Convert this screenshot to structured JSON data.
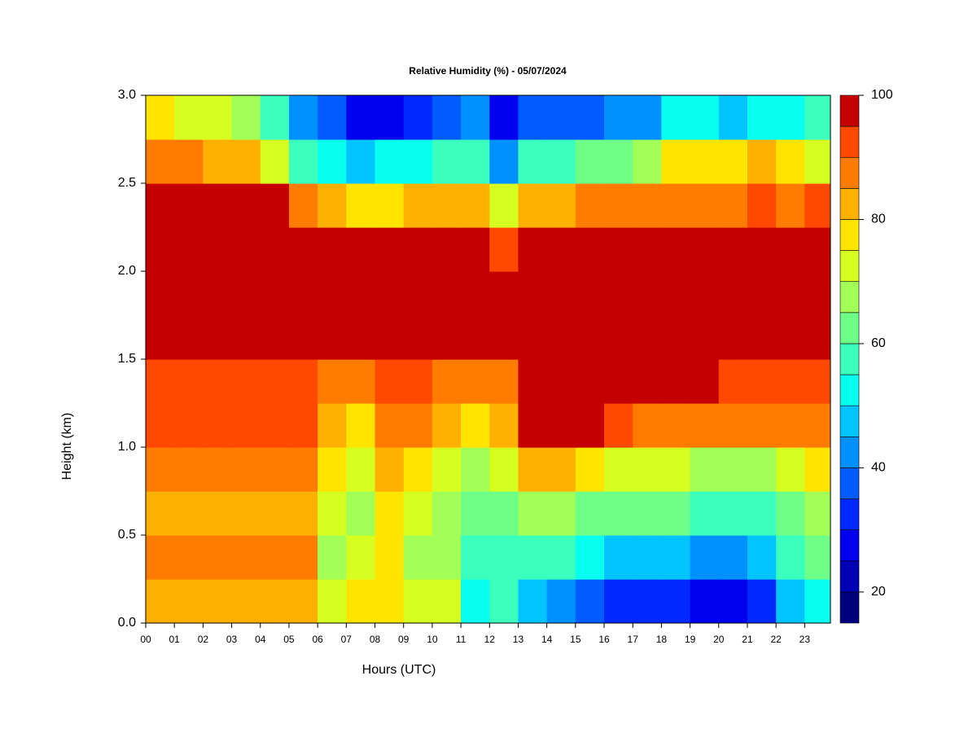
{
  "chart_data": {
    "type": "contour",
    "title": "Relative Humidity (%) - 05/07/2024",
    "x_label": "Hours (UTC)",
    "y_label": "Height (km)",
    "x": [
      0.5,
      1.5,
      2.5,
      3.5,
      4.5,
      5.5,
      6.5,
      7.5,
      8.5,
      9.5,
      10.5,
      11.5,
      12.5,
      13.5,
      14.5,
      15.5,
      16.5,
      17.5,
      18.5,
      19.5,
      20.5,
      21.5,
      22.5,
      23.5
    ],
    "y": [
      0.125,
      0.375,
      0.625,
      0.875,
      1.125,
      1.375,
      1.625,
      1.875,
      2.125,
      2.375,
      2.625,
      2.875
    ],
    "z": [
      [
        82,
        82,
        82,
        82,
        82,
        82,
        72,
        75,
        78,
        70,
        72,
        50,
        55,
        45,
        40,
        38,
        32,
        33,
        30,
        25,
        25,
        30,
        48,
        50
      ],
      [
        85,
        85,
        85,
        85,
        85,
        85,
        68,
        72,
        75,
        68,
        65,
        55,
        58,
        55,
        55,
        52,
        48,
        48,
        45,
        42,
        42,
        45,
        58,
        60
      ],
      [
        82,
        82,
        82,
        82,
        82,
        82,
        70,
        68,
        75,
        70,
        65,
        60,
        62,
        65,
        65,
        62,
        60,
        60,
        60,
        58,
        58,
        58,
        62,
        65
      ],
      [
        86,
        86,
        86,
        86,
        86,
        86,
        75,
        72,
        80,
        78,
        72,
        65,
        70,
        80,
        80,
        75,
        72,
        70,
        70,
        68,
        68,
        68,
        72,
        75
      ],
      [
        90,
        90,
        90,
        90,
        90,
        90,
        82,
        78,
        85,
        85,
        82,
        78,
        80,
        96,
        96,
        95,
        90,
        88,
        86,
        85,
        85,
        86,
        86,
        86
      ],
      [
        94,
        94,
        94,
        94,
        92,
        90,
        88,
        85,
        90,
        90,
        88,
        88,
        88,
        98,
        98,
        98,
        98,
        98,
        95,
        95,
        94,
        94,
        94,
        92
      ],
      [
        98,
        98,
        98,
        98,
        98,
        98,
        97,
        95,
        97,
        97,
        97,
        97,
        96,
        98,
        98,
        98,
        98,
        98,
        98,
        98,
        98,
        98,
        98,
        98
      ],
      [
        99,
        99,
        99,
        99,
        99,
        99,
        99,
        99,
        99,
        99,
        99,
        98,
        97,
        99,
        99,
        99,
        99,
        99,
        99,
        99,
        99,
        99,
        99,
        99
      ],
      [
        98,
        98,
        98,
        98,
        98,
        98,
        97,
        97,
        97,
        97,
        96,
        95,
        92,
        98,
        98,
        98,
        98,
        98,
        98,
        98,
        98,
        98,
        98,
        98
      ],
      [
        97,
        97,
        97,
        97,
        97,
        85,
        80,
        78,
        78,
        80,
        80,
        82,
        70,
        82,
        82,
        85,
        85,
        85,
        86,
        88,
        88,
        90,
        88,
        90
      ],
      [
        88,
        85,
        80,
        80,
        70,
        55,
        50,
        48,
        50,
        50,
        55,
        55,
        42,
        55,
        58,
        60,
        62,
        65,
        75,
        78,
        78,
        80,
        75,
        72
      ],
      [
        75,
        70,
        72,
        68,
        55,
        42,
        35,
        28,
        28,
        32,
        35,
        40,
        28,
        35,
        35,
        38,
        40,
        42,
        50,
        50,
        48,
        50,
        52,
        58
      ]
    ],
    "xlim": [
      0,
      23.9
    ],
    "ylim": [
      0,
      3.0
    ],
    "xticks": [
      {
        "value": 0,
        "label": "00"
      },
      {
        "value": 1,
        "label": "01"
      },
      {
        "value": 2,
        "label": "02"
      },
      {
        "value": 3,
        "label": "03"
      },
      {
        "value": 4,
        "label": "04"
      },
      {
        "value": 5,
        "label": "05"
      },
      {
        "value": 6,
        "label": "06"
      },
      {
        "value": 7,
        "label": "07"
      },
      {
        "value": 8,
        "label": "08"
      },
      {
        "value": 9,
        "label": "09"
      },
      {
        "value": 10,
        "label": "10"
      },
      {
        "value": 11,
        "label": "11"
      },
      {
        "value": 12,
        "label": "12"
      },
      {
        "value": 13,
        "label": "13"
      },
      {
        "value": 14,
        "label": "14"
      },
      {
        "value": 15,
        "label": "15"
      },
      {
        "value": 16,
        "label": "16"
      },
      {
        "value": 17,
        "label": "17"
      },
      {
        "value": 18,
        "label": "18"
      },
      {
        "value": 19,
        "label": "19"
      },
      {
        "value": 20,
        "label": "20"
      },
      {
        "value": 21,
        "label": "21"
      },
      {
        "value": 22,
        "label": "22"
      },
      {
        "value": 23,
        "label": "23"
      }
    ],
    "yticks": [
      {
        "value": 0,
        "label": "0.0"
      },
      0.5,
      {
        "value": 1,
        "label": "1.0"
      },
      1.5,
      {
        "value": 2,
        "label": "2.0"
      },
      2.5,
      {
        "value": 3,
        "label": "3.0"
      }
    ],
    "colorbar": {
      "levels": [
        15,
        20,
        25,
        30,
        35,
        40,
        45,
        50,
        55,
        60,
        65,
        70,
        75,
        80,
        85,
        90,
        95,
        100
      ],
      "colors": [
        "#00007f",
        "#0000b5",
        "#0000ee",
        "#0028ff",
        "#005cff",
        "#0090ff",
        "#00c4ff",
        "#08fff0",
        "#3affbd",
        "#6eff89",
        "#a2ff55",
        "#d6ff21",
        "#ffe400",
        "#ffb000",
        "#ff7c00",
        "#ff4800",
        "#c40000"
      ],
      "top_color": "#800000",
      "ticks": [
        20,
        40,
        60,
        80,
        100
      ]
    }
  }
}
